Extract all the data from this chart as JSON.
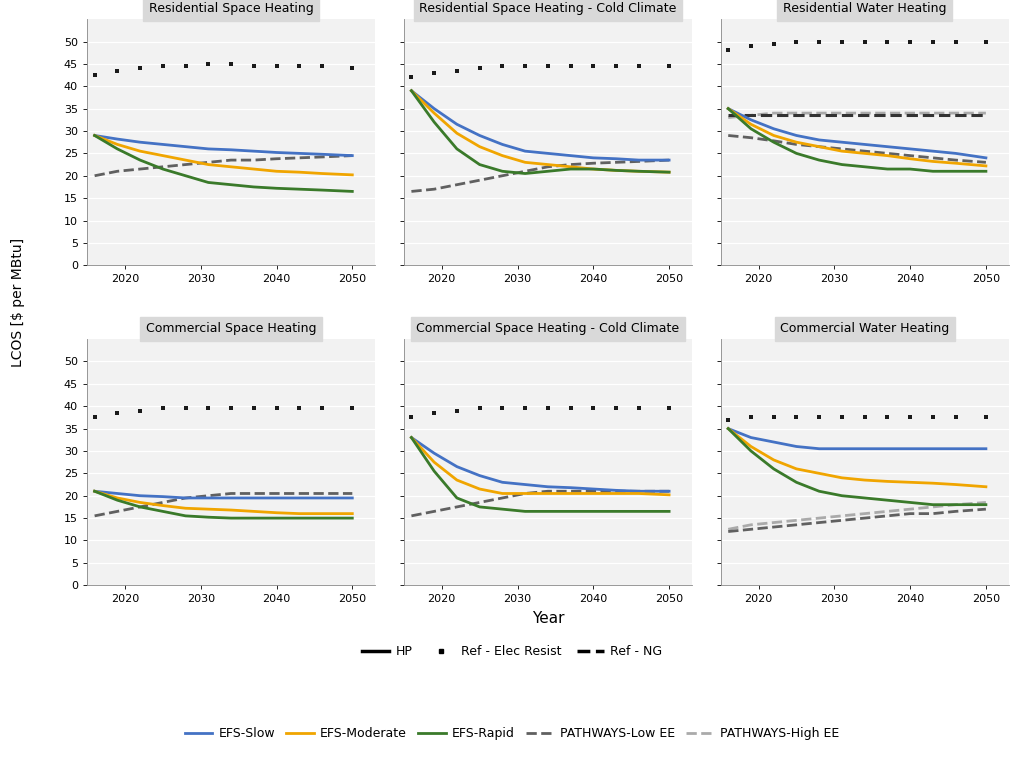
{
  "years": [
    2016,
    2019,
    2022,
    2025,
    2028,
    2031,
    2034,
    2037,
    2040,
    2043,
    2046,
    2050
  ],
  "subplots": [
    {
      "title": "Residential Space Heating",
      "ref_elec": [
        42.5,
        43.5,
        44.0,
        44.5,
        44.5,
        45.0,
        45.0,
        44.5,
        44.5,
        44.5,
        44.5,
        44.0
      ],
      "ref_ng": null,
      "efs_slow": [
        29.0,
        28.2,
        27.5,
        27.0,
        26.5,
        26.0,
        25.8,
        25.5,
        25.2,
        25.0,
        24.8,
        24.5
      ],
      "efs_moderate": [
        29.0,
        27.0,
        25.5,
        24.5,
        23.5,
        22.5,
        22.0,
        21.5,
        21.0,
        20.8,
        20.5,
        20.2
      ],
      "efs_rapid": [
        29.0,
        26.0,
        23.5,
        21.5,
        20.0,
        18.5,
        18.0,
        17.5,
        17.2,
        17.0,
        16.8,
        16.5
      ],
      "pathways_low": [
        20.0,
        21.0,
        21.5,
        22.0,
        22.5,
        23.0,
        23.5,
        23.5,
        23.8,
        24.0,
        24.2,
        24.5
      ],
      "pathways_high": null
    },
    {
      "title": "Residential Space Heating - Cold Climate",
      "ref_elec": [
        42.0,
        43.0,
        43.5,
        44.0,
        44.5,
        44.5,
        44.5,
        44.5,
        44.5,
        44.5,
        44.5,
        44.5
      ],
      "ref_ng": null,
      "efs_slow": [
        39.0,
        35.0,
        31.5,
        29.0,
        27.0,
        25.5,
        25.0,
        24.5,
        24.0,
        23.8,
        23.5,
        23.5
      ],
      "efs_moderate": [
        39.0,
        34.0,
        29.5,
        26.5,
        24.5,
        23.0,
        22.5,
        22.0,
        21.5,
        21.2,
        21.0,
        20.8
      ],
      "efs_rapid": [
        39.0,
        32.0,
        26.0,
        22.5,
        21.0,
        20.5,
        21.0,
        21.5,
        21.5,
        21.2,
        21.0,
        20.8
      ],
      "pathways_low": [
        16.5,
        17.0,
        18.0,
        19.0,
        20.0,
        21.0,
        22.0,
        22.5,
        22.8,
        23.0,
        23.2,
        23.5
      ],
      "pathways_high": null
    },
    {
      "title": "Residential Water Heating",
      "ref_elec": [
        48.0,
        49.0,
        49.5,
        50.0,
        50.0,
        50.0,
        50.0,
        50.0,
        50.0,
        50.0,
        50.0,
        50.0
      ],
      "ref_ng": [
        33.5,
        33.5,
        33.5,
        33.5,
        33.5,
        33.5,
        33.5,
        33.5,
        33.5,
        33.5,
        33.5,
        33.5
      ],
      "efs_slow": [
        35.0,
        32.5,
        30.5,
        29.0,
        28.0,
        27.5,
        27.0,
        26.5,
        26.0,
        25.5,
        25.0,
        24.0
      ],
      "efs_moderate": [
        35.0,
        31.5,
        29.0,
        27.5,
        26.5,
        25.5,
        25.0,
        24.5,
        23.8,
        23.2,
        22.8,
        22.2
      ],
      "efs_rapid": [
        35.0,
        30.5,
        27.5,
        25.0,
        23.5,
        22.5,
        22.0,
        21.5,
        21.5,
        21.0,
        21.0,
        21.0
      ],
      "pathways_low": [
        29.0,
        28.5,
        27.8,
        27.0,
        26.5,
        26.0,
        25.5,
        25.0,
        24.5,
        24.0,
        23.5,
        23.0
      ],
      "pathways_high": [
        33.0,
        33.5,
        34.0,
        34.0,
        34.0,
        34.0,
        34.0,
        34.0,
        34.0,
        34.0,
        34.0,
        34.0
      ]
    },
    {
      "title": "Commercial Space Heating",
      "ref_elec": [
        37.5,
        38.5,
        39.0,
        39.5,
        39.5,
        39.5,
        39.5,
        39.5,
        39.5,
        39.5,
        39.5,
        39.5
      ],
      "ref_ng": null,
      "efs_slow": [
        21.0,
        20.5,
        20.0,
        19.8,
        19.5,
        19.5,
        19.5,
        19.5,
        19.5,
        19.5,
        19.5,
        19.5
      ],
      "efs_moderate": [
        21.0,
        19.5,
        18.5,
        17.8,
        17.2,
        17.0,
        16.8,
        16.5,
        16.2,
        16.0,
        16.0,
        16.0
      ],
      "efs_rapid": [
        21.0,
        19.0,
        17.5,
        16.5,
        15.5,
        15.2,
        15.0,
        15.0,
        15.0,
        15.0,
        15.0,
        15.0
      ],
      "pathways_low": [
        15.5,
        16.5,
        17.5,
        18.5,
        19.5,
        20.0,
        20.5,
        20.5,
        20.5,
        20.5,
        20.5,
        20.5
      ],
      "pathways_high": null
    },
    {
      "title": "Commercial Space Heating - Cold Climate",
      "ref_elec": [
        37.5,
        38.5,
        39.0,
        39.5,
        39.5,
        39.5,
        39.5,
        39.5,
        39.5,
        39.5,
        39.5,
        39.5
      ],
      "ref_ng": null,
      "efs_slow": [
        33.0,
        29.5,
        26.5,
        24.5,
        23.0,
        22.5,
        22.0,
        21.8,
        21.5,
        21.2,
        21.0,
        21.0
      ],
      "efs_moderate": [
        33.0,
        27.5,
        23.5,
        21.5,
        20.5,
        20.5,
        20.5,
        20.5,
        20.5,
        20.5,
        20.5,
        20.2
      ],
      "efs_rapid": [
        33.0,
        25.5,
        19.5,
        17.5,
        17.0,
        16.5,
        16.5,
        16.5,
        16.5,
        16.5,
        16.5,
        16.5
      ],
      "pathways_low": [
        15.5,
        16.5,
        17.5,
        18.5,
        19.5,
        20.5,
        21.0,
        21.0,
        21.0,
        21.0,
        21.0,
        21.0
      ],
      "pathways_high": null
    },
    {
      "title": "Commercial Water Heating",
      "ref_elec": [
        37.0,
        37.5,
        37.5,
        37.5,
        37.5,
        37.5,
        37.5,
        37.5,
        37.5,
        37.5,
        37.5,
        37.5
      ],
      "ref_ng": null,
      "efs_slow": [
        35.0,
        33.0,
        32.0,
        31.0,
        30.5,
        30.5,
        30.5,
        30.5,
        30.5,
        30.5,
        30.5,
        30.5
      ],
      "efs_moderate": [
        35.0,
        31.0,
        28.0,
        26.0,
        25.0,
        24.0,
        23.5,
        23.2,
        23.0,
        22.8,
        22.5,
        22.0
      ],
      "efs_rapid": [
        35.0,
        30.0,
        26.0,
        23.0,
        21.0,
        20.0,
        19.5,
        19.0,
        18.5,
        18.0,
        18.0,
        18.0
      ],
      "pathways_low": [
        12.0,
        12.5,
        13.0,
        13.5,
        14.0,
        14.5,
        15.0,
        15.5,
        16.0,
        16.0,
        16.5,
        17.0
      ],
      "pathways_high": [
        12.5,
        13.5,
        14.0,
        14.5,
        15.0,
        15.5,
        16.0,
        16.5,
        17.0,
        17.5,
        18.0,
        18.5
      ]
    }
  ],
  "colors": {
    "efs_slow": "#4472c4",
    "efs_moderate": "#f0a500",
    "efs_rapid": "#3a7a2a",
    "pathways_low": "#606060",
    "pathways_high": "#aaaaaa",
    "ref_elec": "#1a1a1a",
    "ref_ng": "#555555"
  },
  "ylabel": "LCOS [$ per MBtu]",
  "xlabel": "Year",
  "ylim": [
    0,
    55
  ],
  "yticks": [
    0,
    5,
    10,
    15,
    20,
    25,
    30,
    35,
    40,
    45,
    50
  ],
  "xticks": [
    2020,
    2030,
    2040,
    2050
  ],
  "title_bg": "#d9d9d9",
  "axes_bg": "#f2f2f2",
  "fig_bg": "#ffffff"
}
